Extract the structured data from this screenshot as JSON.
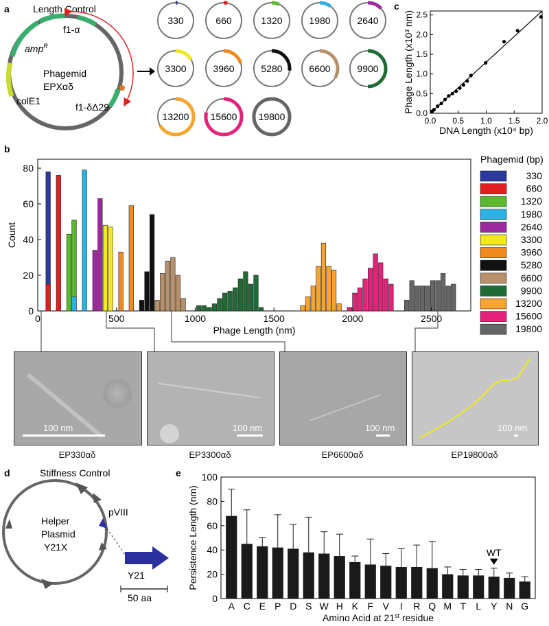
{
  "panels": {
    "a": {
      "label": "a",
      "plasmid_title": "Length Control",
      "name_line1": "Phagemid",
      "name_line2": "EPXαδ",
      "features": [
        "f1-α",
        "amp",
        "R",
        "colE1",
        "f1-δΔ29"
      ],
      "circles": [
        {
          "label": "330",
          "color": "#2b3a9c",
          "frac": 0.017
        },
        {
          "label": "660",
          "color": "#e02020",
          "frac": 0.033
        },
        {
          "label": "1320",
          "color": "#5cb82e",
          "frac": 0.066
        },
        {
          "label": "1980",
          "color": "#29b2e3",
          "frac": 0.1
        },
        {
          "label": "2640",
          "color": "#9b2a9e",
          "frac": 0.133
        },
        {
          "label": "3300",
          "color": "#f2e81c",
          "frac": 0.167
        },
        {
          "label": "3960",
          "color": "#f08a1f",
          "frac": 0.2
        },
        {
          "label": "5280",
          "color": "#111111",
          "frac": 0.267
        },
        {
          "label": "6600",
          "color": "#b8916b",
          "frac": 0.333
        },
        {
          "label": "9900",
          "color": "#1f6a35",
          "frac": 0.5
        },
        {
          "label": "13200",
          "color": "#f5a530",
          "frac": 0.667
        },
        {
          "label": "15600",
          "color": "#e3237a",
          "frac": 0.788
        },
        {
          "label": "19800",
          "color": "#666666",
          "frac": 1.0
        }
      ]
    },
    "b": {
      "label": "b"
    },
    "c": {
      "label": "c"
    },
    "d": {
      "label": "d",
      "plasmid_title": "Stiffness Control",
      "name_line1": "Helper",
      "name_line2": "Plasmid",
      "name_line3": "Y21X",
      "gene": "pVIII",
      "arrow_label": "Y21",
      "scale": "50 aa"
    },
    "e": {
      "label": "e"
    }
  },
  "micrographs": [
    {
      "caption": "EP330αδ",
      "scale": "100 nm"
    },
    {
      "caption": "EP3300αδ",
      "scale": "100 nm"
    },
    {
      "caption": "EP6600αδ",
      "scale": "100 nm"
    },
    {
      "caption": "EP19800αδ",
      "scale": "100 nm"
    }
  ],
  "chart_data": [
    {
      "type": "bar",
      "panel": "b",
      "xlabel": "Phage Length (nm)",
      "ylabel": "Count",
      "xlim": [
        0,
        2750
      ],
      "ylim": [
        0,
        85
      ],
      "xticks": [
        0,
        500,
        1000,
        1500,
        2000,
        2500
      ],
      "yticks": [
        0,
        20,
        40,
        60,
        80
      ],
      "legend_title": "Phagemid (bp)",
      "legend_position": "right",
      "bin_width": 33,
      "series": [
        {
          "name": "330",
          "color": "#2b3a9c",
          "bins": [
            [
              66,
              78
            ]
          ]
        },
        {
          "name": "660",
          "color": "#e02020",
          "bins": [
            [
              66,
              15
            ],
            [
              132,
              76
            ]
          ]
        },
        {
          "name": "1320",
          "color": "#5cb82e",
          "bins": [
            [
              198,
              43
            ],
            [
              231,
              51
            ]
          ]
        },
        {
          "name": "1980",
          "color": "#29b2e3",
          "bins": [
            [
              231,
              8
            ],
            [
              297,
              79
            ]
          ]
        },
        {
          "name": "2640",
          "color": "#9b2a9e",
          "bins": [
            [
              363,
              34
            ],
            [
              396,
              63
            ]
          ]
        },
        {
          "name": "3300",
          "color": "#f2e81c",
          "bins": [
            [
              429,
              48
            ],
            [
              462,
              47
            ]
          ]
        },
        {
          "name": "3960",
          "color": "#f08a1f",
          "bins": [
            [
              528,
              33
            ],
            [
              594,
              59
            ]
          ]
        },
        {
          "name": "5280",
          "color": "#111111",
          "bins": [
            [
              660,
              6
            ],
            [
              693,
              22
            ],
            [
              726,
              54
            ]
          ]
        },
        {
          "name": "6600",
          "color": "#b8916b",
          "bins": [
            [
              759,
              6
            ],
            [
              792,
              21
            ],
            [
              825,
              28
            ],
            [
              858,
              30
            ],
            [
              891,
              20
            ],
            [
              924,
              7
            ]
          ]
        },
        {
          "name": "9900",
          "color": "#1f6a35",
          "bins": [
            [
              1023,
              3
            ],
            [
              1056,
              3
            ],
            [
              1089,
              2
            ],
            [
              1122,
              4
            ],
            [
              1155,
              7
            ],
            [
              1188,
              10
            ],
            [
              1221,
              11
            ],
            [
              1254,
              13
            ],
            [
              1287,
              18
            ],
            [
              1320,
              22
            ],
            [
              1353,
              15
            ],
            [
              1386,
              20
            ],
            [
              1419,
              2
            ]
          ]
        },
        {
          "name": "13200",
          "color": "#f5a530",
          "bins": [
            [
              1683,
              3
            ],
            [
              1716,
              8
            ],
            [
              1749,
              14
            ],
            [
              1782,
              25
            ],
            [
              1815,
              38
            ],
            [
              1848,
              25
            ],
            [
              1881,
              23
            ],
            [
              1914,
              4
            ]
          ]
        },
        {
          "name": "15600",
          "color": "#e3237a",
          "bins": [
            [
              1980,
              2
            ],
            [
              2013,
              10
            ],
            [
              2046,
              13
            ],
            [
              2079,
              18
            ],
            [
              2112,
              24
            ],
            [
              2145,
              32
            ],
            [
              2178,
              27
            ],
            [
              2211,
              18
            ],
            [
              2244,
              15
            ]
          ]
        },
        {
          "name": "19800",
          "color": "#666666",
          "bins": [
            [
              2343,
              6
            ],
            [
              2376,
              17
            ],
            [
              2409,
              14
            ],
            [
              2442,
              14
            ],
            [
              2475,
              14
            ],
            [
              2508,
              17
            ],
            [
              2541,
              17
            ],
            [
              2574,
              21
            ],
            [
              2607,
              14
            ],
            [
              2640,
              15
            ]
          ]
        }
      ]
    },
    {
      "type": "scatter",
      "panel": "c",
      "xlabel": "DNA Length (x10⁴ bp)",
      "ylabel": "Phage Length (x10³ nm)",
      "xlim": [
        0,
        2.0
      ],
      "ylim": [
        0,
        2.6
      ],
      "xticks": [
        "0.0",
        "0.5",
        "1.0",
        "1.5",
        "2.0"
      ],
      "yticks": [
        "0.0",
        "0.5",
        "1.0",
        "1.5",
        "2.0",
        "2.5"
      ],
      "x": [
        0.033,
        0.066,
        0.132,
        0.198,
        0.264,
        0.33,
        0.396,
        0.462,
        0.528,
        0.594,
        0.66,
        0.726,
        0.99,
        1.32,
        1.56,
        1.98
      ],
      "y": [
        0.05,
        0.09,
        0.18,
        0.25,
        0.35,
        0.44,
        0.5,
        0.56,
        0.64,
        0.72,
        0.82,
        0.96,
        1.28,
        1.82,
        2.1,
        2.45
      ],
      "fit": [
        [
          0,
          0
        ],
        [
          2.0,
          2.6
        ]
      ]
    },
    {
      "type": "bar",
      "panel": "e",
      "xlabel": "Amino Acid at 21st residue",
      "ylabel": "Persistence Length (nm)",
      "ylim": [
        0,
        100
      ],
      "yticks": [
        0,
        20,
        40,
        60,
        80,
        100
      ],
      "categories": [
        "A",
        "C",
        "E",
        "P",
        "D",
        "S",
        "W",
        "H",
        "K",
        "F",
        "V",
        "I",
        "R",
        "Q",
        "M",
        "T",
        "L",
        "Y",
        "N",
        "G"
      ],
      "values": [
        68,
        45,
        43,
        42,
        41,
        38,
        37,
        35,
        30,
        28,
        27,
        26,
        26,
        25,
        20,
        19,
        19,
        18,
        17,
        14
      ],
      "errors": [
        22,
        28,
        7,
        27,
        20,
        29,
        18,
        18,
        5,
        21,
        10,
        15,
        18,
        22,
        6,
        5,
        5,
        7,
        4,
        4
      ],
      "annotation": {
        "text": "WT",
        "category": "Y"
      }
    }
  ]
}
